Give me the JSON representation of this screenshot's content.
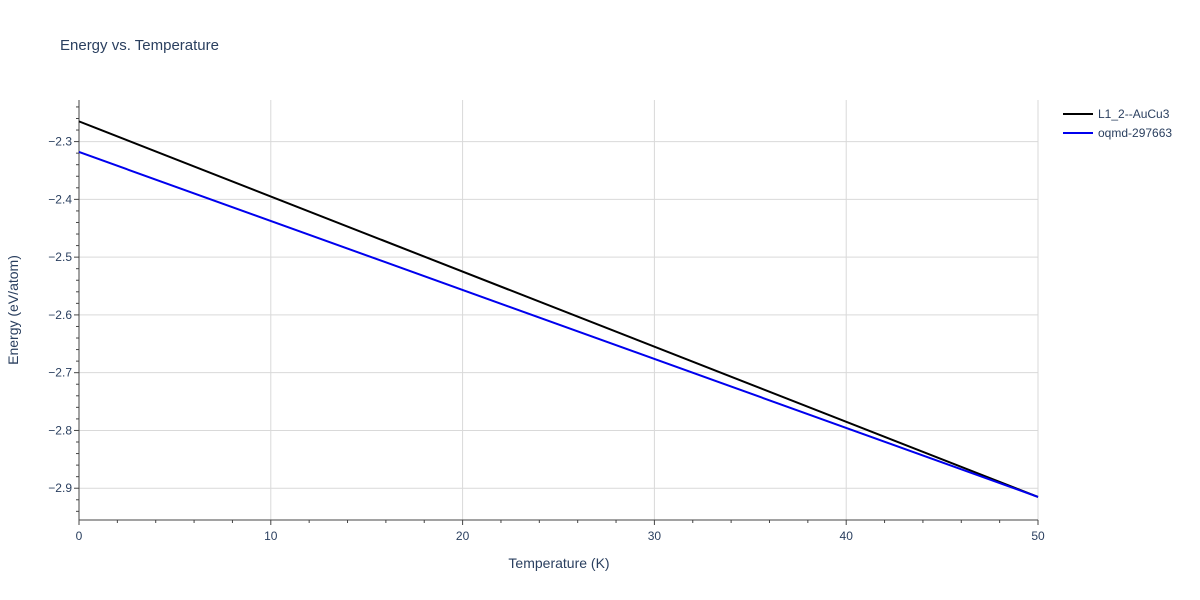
{
  "chart_data": {
    "type": "line",
    "title": "Energy vs. Temperature",
    "xlabel": "Temperature (K)",
    "ylabel": "Energy (eV/atom)",
    "xlim": [
      0,
      50
    ],
    "ylim": [
      -2.955,
      -2.228
    ],
    "x_ticks": [
      0,
      10,
      20,
      30,
      40,
      50
    ],
    "x_tick_labels": [
      "0",
      "10",
      "20",
      "30",
      "40",
      "50"
    ],
    "y_ticks": [
      -2.9,
      -2.8,
      -2.7,
      -2.6,
      -2.5,
      -2.4,
      -2.3
    ],
    "y_tick_labels": [
      "−2.9",
      "−2.8",
      "−2.7",
      "−2.6",
      "−2.5",
      "−2.4",
      "−2.3"
    ],
    "grid": true,
    "legend_position": "top-right",
    "series": [
      {
        "name": "L1_2--AuCu3",
        "color": "#000000",
        "x": [
          0,
          50
        ],
        "y": [
          -2.265,
          -2.915
        ]
      },
      {
        "name": "oqmd-297663",
        "color": "#0000ee",
        "x": [
          0,
          50
        ],
        "y": [
          -2.318,
          -2.915
        ]
      }
    ]
  }
}
